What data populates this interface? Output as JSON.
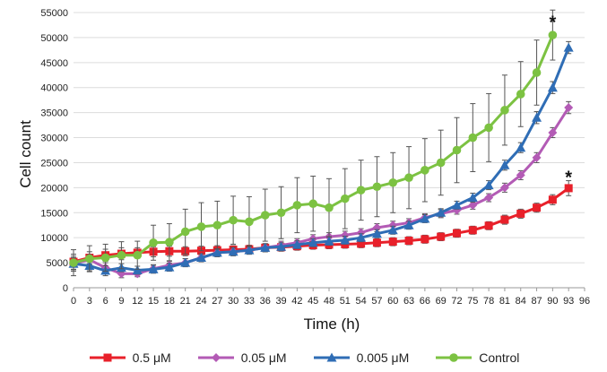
{
  "chart_data": {
    "type": "line",
    "xlabel": "Time (h)",
    "ylabel": "Cell count",
    "x": [
      0,
      3,
      6,
      9,
      12,
      15,
      18,
      21,
      24,
      27,
      30,
      33,
      36,
      39,
      42,
      45,
      48,
      51,
      54,
      57,
      60,
      63,
      66,
      69,
      72,
      75,
      78,
      81,
      84,
      87,
      90,
      93
    ],
    "x_ticks": [
      "0",
      "3",
      "6",
      "9",
      "12",
      "15",
      "18",
      "21",
      "24",
      "27",
      "30",
      "33",
      "36",
      "39",
      "42",
      "45",
      "48",
      "51",
      "54",
      "57",
      "60",
      "63",
      "66",
      "69",
      "72",
      "75",
      "78",
      "81",
      "84",
      "87",
      "90",
      "93",
      "96"
    ],
    "xlim": [
      0,
      96
    ],
    "ylim": [
      0,
      55000
    ],
    "y_ticks": [
      "0",
      "5000",
      "10000",
      "15000",
      "20000",
      "25000",
      "30000",
      "35000",
      "40000",
      "45000",
      "50000",
      "55000"
    ],
    "grid": "horizontal",
    "legend_position": "bottom",
    "series": [
      {
        "name": "0.5 μM",
        "color": "#e8202a",
        "marker": "square",
        "values": [
          5200,
          6000,
          6500,
          6800,
          7000,
          7200,
          7300,
          7300,
          7400,
          7500,
          7600,
          7700,
          8000,
          8100,
          8300,
          8500,
          8600,
          8700,
          8800,
          9000,
          9200,
          9400,
          9700,
          10200,
          10900,
          11500,
          12400,
          13600,
          14800,
          16000,
          17600,
          19900
        ],
        "errors": [
          1500,
          1200,
          1200,
          1200,
          1000,
          1000,
          1000,
          900,
          900,
          900,
          800,
          800,
          800,
          800,
          800,
          800,
          800,
          800,
          800,
          800,
          800,
          800,
          800,
          800,
          800,
          800,
          800,
          900,
          900,
          900,
          1000,
          1500
        ]
      },
      {
        "name": "0.05 μM",
        "color": "#b35bb5",
        "marker": "diamond",
        "values": [
          4800,
          5600,
          4000,
          2800,
          2800,
          3800,
          4500,
          5000,
          6000,
          7000,
          7200,
          7500,
          8000,
          8500,
          9000,
          9800,
          10200,
          10500,
          11000,
          12000,
          12500,
          13000,
          14000,
          14800,
          15500,
          16500,
          18000,
          20000,
          22500,
          26000,
          31000,
          36000
        ],
        "errors": [
          1500,
          1000,
          1000,
          800,
          600,
          800,
          800,
          800,
          800,
          800,
          800,
          800,
          800,
          800,
          800,
          800,
          800,
          800,
          800,
          800,
          800,
          800,
          800,
          800,
          800,
          800,
          800,
          900,
          900,
          1000,
          1000,
          1200
        ]
      },
      {
        "name": "0.005 μM",
        "color": "#2f6db5",
        "marker": "triangle",
        "values": [
          4800,
          4400,
          3400,
          4000,
          3500,
          3700,
          4100,
          5000,
          6000,
          7000,
          7200,
          7500,
          8000,
          8200,
          8600,
          9000,
          9300,
          9500,
          10000,
          10800,
          11500,
          12500,
          13800,
          15000,
          16500,
          18000,
          20500,
          24500,
          28000,
          34000,
          40000,
          48000
        ],
        "errors": [
          1200,
          1000,
          1000,
          800,
          800,
          800,
          800,
          800,
          800,
          800,
          800,
          800,
          800,
          800,
          800,
          800,
          800,
          800,
          800,
          800,
          800,
          800,
          800,
          800,
          800,
          900,
          900,
          1000,
          1000,
          1200,
          1200,
          1200
        ]
      },
      {
        "name": "Control",
        "color": "#7cc242",
        "marker": "circle",
        "values": [
          5000,
          5800,
          6000,
          6500,
          6500,
          9000,
          9100,
          11200,
          12200,
          12500,
          13500,
          13200,
          14500,
          15000,
          16500,
          16800,
          16000,
          17800,
          19500,
          20200,
          21000,
          22000,
          23500,
          25000,
          27500,
          30000,
          32000,
          35500,
          38700,
          43000,
          50500,
          null
        ],
        "errors": [
          2600,
          2600,
          2700,
          2700,
          2800,
          3500,
          3700,
          4500,
          4800,
          4800,
          4800,
          5000,
          5200,
          5200,
          5500,
          5500,
          5800,
          6000,
          6000,
          6000,
          6000,
          6200,
          6300,
          6500,
          6500,
          6800,
          6800,
          7000,
          6500,
          6500,
          5000,
          null
        ]
      }
    ],
    "annotations": [
      {
        "text": "*",
        "x": 90,
        "y": 53500
      },
      {
        "text": "*",
        "x": 93,
        "y": 22500
      }
    ]
  }
}
